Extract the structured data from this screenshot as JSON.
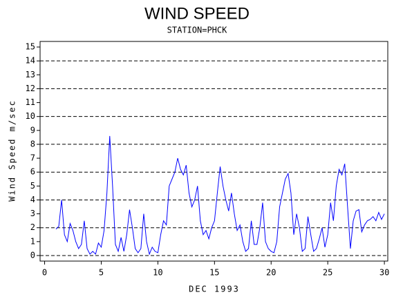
{
  "chart_data": {
    "type": "line",
    "title": "WIND SPEED",
    "subtitle": "STATION=PHCK",
    "x_label": "DEC 1993",
    "y_label": "Wind Speed m/sec",
    "xlim": [
      -0.4,
      30.3
    ],
    "ylim": [
      -0.4,
      15.4
    ],
    "xticks": [
      0,
      5,
      10,
      15,
      20,
      25,
      30
    ],
    "yticks": [
      0,
      1,
      2,
      3,
      4,
      5,
      6,
      7,
      8,
      9,
      10,
      11,
      12,
      13,
      14,
      15
    ],
    "ygrid": [
      0,
      2,
      4,
      6,
      8,
      10,
      12,
      14
    ],
    "color": "#0000ff",
    "x": [
      1.0,
      1.25,
      1.5,
      1.75,
      2.0,
      2.25,
      2.5,
      2.75,
      3.0,
      3.25,
      3.5,
      3.75,
      4.0,
      4.25,
      4.5,
      4.75,
      5.0,
      5.25,
      5.5,
      5.75,
      6.0,
      6.25,
      6.5,
      6.75,
      7.0,
      7.25,
      7.5,
      7.75,
      8.0,
      8.25,
      8.5,
      8.75,
      9.0,
      9.25,
      9.5,
      9.75,
      10.0,
      10.25,
      10.5,
      10.75,
      11.0,
      11.25,
      11.5,
      11.75,
      12.0,
      12.25,
      12.5,
      12.75,
      13.0,
      13.25,
      13.5,
      13.75,
      14.0,
      14.25,
      14.5,
      14.75,
      15.0,
      15.25,
      15.5,
      15.75,
      16.0,
      16.25,
      16.5,
      16.75,
      17.0,
      17.25,
      17.5,
      17.75,
      18.0,
      18.25,
      18.5,
      18.75,
      19.0,
      19.25,
      19.5,
      19.75,
      20.0,
      20.25,
      20.5,
      20.75,
      21.0,
      21.25,
      21.5,
      21.75,
      22.0,
      22.25,
      22.5,
      22.75,
      23.0,
      23.25,
      23.5,
      23.75,
      24.0,
      24.25,
      24.5,
      24.75,
      25.0,
      25.25,
      25.5,
      25.75,
      26.0,
      26.25,
      26.5,
      26.75,
      27.0,
      27.25,
      27.5,
      27.75,
      28.0,
      28.25,
      28.5,
      28.75,
      29.0,
      29.25,
      29.5,
      29.75,
      30.0
    ],
    "values": [
      1.9,
      2.1,
      4.0,
      1.5,
      1.0,
      2.3,
      1.8,
      1.0,
      0.5,
      0.8,
      2.5,
      0.5,
      0.1,
      0.3,
      0.1,
      0.9,
      0.6,
      1.8,
      4.5,
      8.6,
      5.0,
      0.8,
      0.3,
      1.3,
      0.3,
      1.5,
      3.3,
      2.0,
      0.5,
      0.2,
      0.5,
      3.0,
      1.0,
      0.1,
      0.6,
      0.3,
      0.2,
      1.5,
      2.5,
      2.2,
      5.0,
      5.5,
      6.0,
      7.0,
      6.2,
      5.8,
      6.5,
      4.5,
      3.5,
      4.0,
      5.0,
      2.5,
      1.5,
      1.8,
      1.2,
      2.0,
      2.5,
      4.5,
      6.4,
      5.0,
      4.0,
      3.2,
      4.5,
      3.0,
      1.8,
      2.2,
      1.0,
      0.3,
      0.5,
      2.5,
      0.8,
      0.8,
      2.0,
      3.8,
      1.0,
      0.5,
      0.3,
      0.2,
      1.0,
      3.5,
      4.5,
      5.5,
      5.9,
      4.5,
      1.5,
      3.0,
      2.0,
      0.3,
      0.5,
      2.8,
      1.5,
      0.3,
      0.5,
      1.2,
      2.0,
      0.6,
      1.5,
      3.8,
      2.5,
      5.0,
      6.2,
      5.8,
      6.6,
      3.5,
      0.5,
      2.5,
      3.2,
      3.3,
      1.7,
      2.2,
      2.5,
      2.6,
      2.8,
      2.5,
      3.1,
      2.6,
      3.0
    ]
  }
}
